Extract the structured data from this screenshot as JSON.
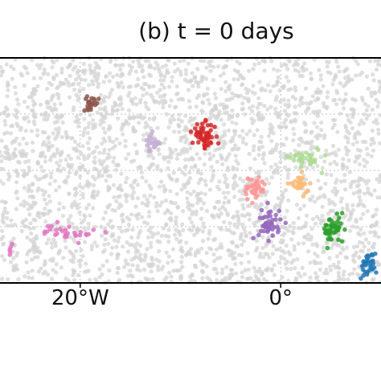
{
  "chart_data": {
    "type": "scatter",
    "title": "(b) t = 0 days",
    "xlabel": "",
    "ylabel": "",
    "xlim": [
      -28,
      10
    ],
    "ylim": [
      -10,
      10
    ],
    "x_ticks": [
      {
        "value": -20,
        "label": "20°W"
      },
      {
        "value": 0,
        "label": "0°"
      }
    ],
    "grid": true,
    "background": {
      "name": "all particles",
      "color": "#d4d4d4",
      "count": 2600
    },
    "series": [
      {
        "color": "#8c564b",
        "center": [
          -18.9,
          6.0
        ],
        "spread": [
          0.7,
          0.5
        ],
        "count": 24
      },
      {
        "color": "#c5b0d5",
        "center": [
          -12.9,
          2.4
        ],
        "spread": [
          0.7,
          0.8
        ],
        "count": 22
      },
      {
        "color": "#d62728",
        "center": [
          -7.6,
          3.1
        ],
        "spread": [
          1.1,
          1.0
        ],
        "count": 55
      },
      {
        "color": "#ff9896",
        "center": [
          -2.6,
          -1.6
        ],
        "spread": [
          1.0,
          1.0
        ],
        "count": 45
      },
      {
        "color": "#aedc92",
        "center": [
          2.5,
          1.2
        ],
        "spread": [
          1.4,
          0.9
        ],
        "count": 30
      },
      {
        "color": "#ffbb78",
        "center": [
          1.8,
          -1.3
        ],
        "spread": [
          0.9,
          0.8
        ],
        "count": 26
      },
      {
        "color": "#9467bd",
        "center": [
          -1.1,
          -4.6
        ],
        "spread": [
          1.0,
          1.4
        ],
        "count": 42
      },
      {
        "color": "#2ca02c",
        "center": [
          5.3,
          -5.3
        ],
        "spread": [
          1.0,
          1.1
        ],
        "count": 48
      },
      {
        "color": "#1f77b4",
        "center": [
          8.7,
          -8.4
        ],
        "spread": [
          0.8,
          1.0
        ],
        "count": 32
      },
      {
        "color": "#e377c2",
        "center": [
          -21.0,
          -5.5
        ],
        "spread": [
          2.5,
          0.7
        ],
        "count": 30
      },
      {
        "color": "#e377c2",
        "center": [
          -27.0,
          -7.0
        ],
        "spread": [
          0.3,
          0.5
        ],
        "count": 5
      }
    ]
  }
}
